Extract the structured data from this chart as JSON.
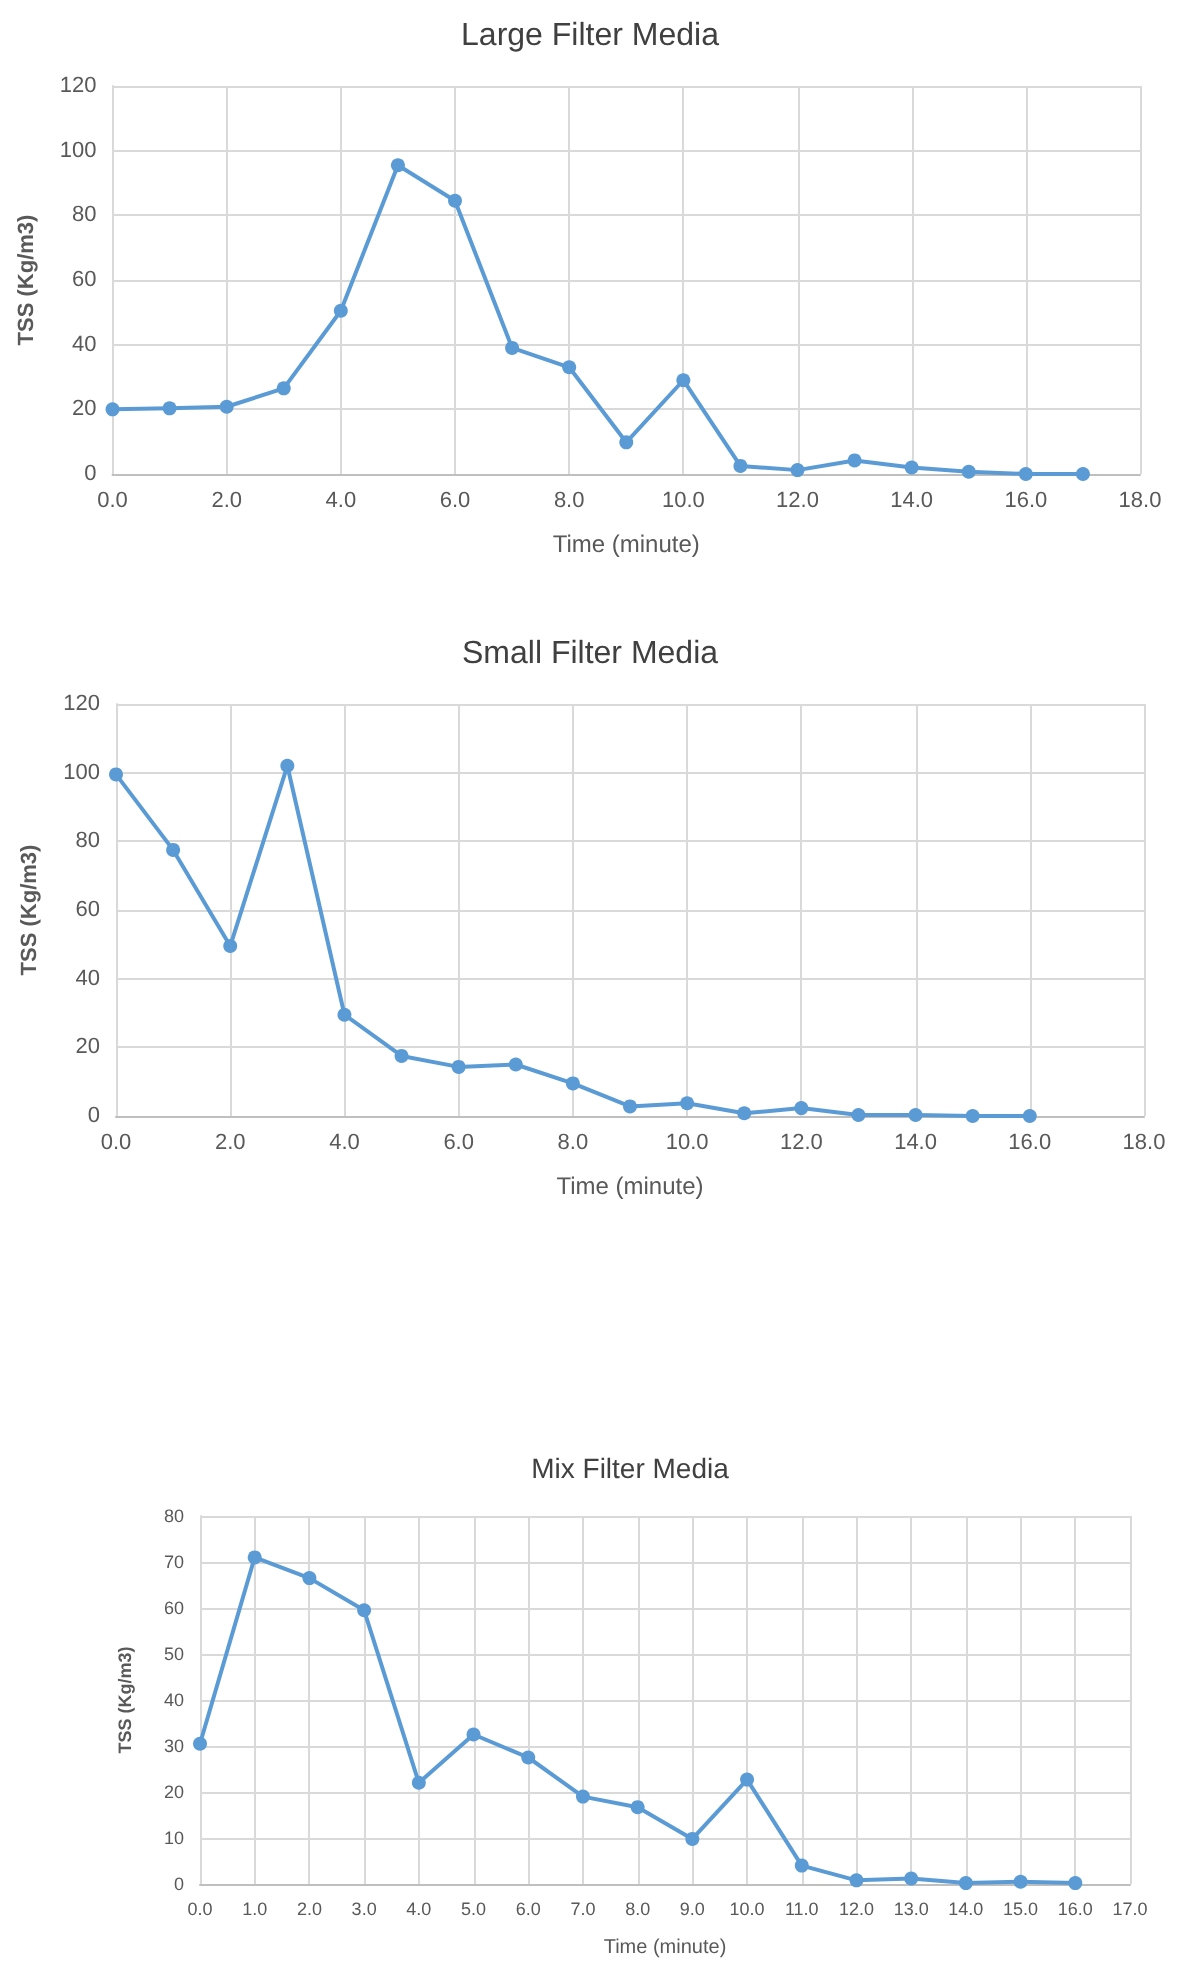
{
  "chart_data": [
    {
      "type": "line",
      "title": "Large Filter Media",
      "xlabel": "Time (minute)",
      "ylabel": "TSS (Kg/m3)",
      "x": [
        0,
        1,
        2,
        3,
        4,
        5,
        6,
        7,
        8,
        9,
        10,
        11,
        12,
        13,
        14,
        15,
        16,
        17
      ],
      "series": [
        {
          "color": "#5b9bd5",
          "values": [
            20,
            20.3,
            20.8,
            26.5,
            50.5,
            95.5,
            84.5,
            39,
            33,
            9.8,
            29,
            2.5,
            1.2,
            4.2,
            2,
            0.7,
            0,
            0
          ]
        }
      ],
      "xlim": [
        0,
        18
      ],
      "xticks": [
        {
          "value": 0,
          "label": "0.0"
        },
        {
          "value": 2,
          "label": "2.0"
        },
        {
          "value": 4,
          "label": "4.0"
        },
        {
          "value": 6,
          "label": "6.0"
        },
        {
          "value": 8,
          "label": "8.0"
        },
        {
          "value": 10,
          "label": "10.0"
        },
        {
          "value": 12,
          "label": "12.0"
        },
        {
          "value": 14,
          "label": "14.0"
        },
        {
          "value": 16,
          "label": "16.0"
        },
        {
          "value": 18,
          "label": "18.0"
        }
      ],
      "ylim": [
        0,
        120
      ],
      "yticks": [
        0,
        20,
        40,
        60,
        80,
        100,
        120
      ],
      "grid": true,
      "marker": "circle",
      "line_style": "solid"
    },
    {
      "type": "line",
      "title": "Small Filter Media",
      "xlabel": "Time (minute)",
      "ylabel": "TSS (Kg/m3)",
      "x": [
        0,
        1,
        2,
        3,
        4,
        5,
        6,
        7,
        8,
        9,
        10,
        11,
        12,
        13,
        14,
        15,
        16
      ],
      "series": [
        {
          "color": "#5b9bd5",
          "values": [
            99.5,
            77.5,
            49.5,
            102,
            29.5,
            17.5,
            14.3,
            15,
            9.5,
            2.8,
            3.7,
            0.8,
            2.3,
            0.3,
            0.3,
            0,
            0
          ]
        }
      ],
      "xlim": [
        0,
        18
      ],
      "xticks": [
        {
          "value": 0,
          "label": "0.0"
        },
        {
          "value": 2,
          "label": "2.0"
        },
        {
          "value": 4,
          "label": "4.0"
        },
        {
          "value": 6,
          "label": "6.0"
        },
        {
          "value": 8,
          "label": "8.0"
        },
        {
          "value": 10,
          "label": "10.0"
        },
        {
          "value": 12,
          "label": "12.0"
        },
        {
          "value": 14,
          "label": "14.0"
        },
        {
          "value": 16,
          "label": "16.0"
        },
        {
          "value": 18,
          "label": "18.0"
        }
      ],
      "ylim": [
        0,
        120
      ],
      "yticks": [
        0,
        20,
        40,
        60,
        80,
        100,
        120
      ],
      "grid": true,
      "marker": "circle",
      "line_style": "solid"
    },
    {
      "type": "line",
      "title": "Mix Filter Media",
      "xlabel": "Time (minute)",
      "ylabel": "TSS (Kg/m3)",
      "x": [
        0,
        1,
        2,
        3,
        4,
        5,
        6,
        7,
        8,
        9,
        10,
        11,
        12,
        13,
        14,
        15,
        16
      ],
      "series": [
        {
          "color": "#5b9bd5",
          "values": [
            30.5,
            71,
            66.5,
            59.5,
            22,
            32.5,
            27.5,
            19,
            16.7,
            9.8,
            22.7,
            4,
            0.8,
            1.2,
            0.2,
            0.5,
            0.2
          ]
        }
      ],
      "xlim": [
        0,
        17
      ],
      "xticks": [
        {
          "value": 0,
          "label": "0.0"
        },
        {
          "value": 1,
          "label": "1.0"
        },
        {
          "value": 2,
          "label": "2.0"
        },
        {
          "value": 3,
          "label": "3.0"
        },
        {
          "value": 4,
          "label": "4.0"
        },
        {
          "value": 5,
          "label": "5.0"
        },
        {
          "value": 6,
          "label": "6.0"
        },
        {
          "value": 7,
          "label": "7.0"
        },
        {
          "value": 8,
          "label": "8.0"
        },
        {
          "value": 9,
          "label": "9.0"
        },
        {
          "value": 10,
          "label": "10.0"
        },
        {
          "value": 11,
          "label": "11.0"
        },
        {
          "value": 12,
          "label": "12.0"
        },
        {
          "value": 13,
          "label": "13.0"
        },
        {
          "value": 14,
          "label": "14.0"
        },
        {
          "value": 15,
          "label": "15.0"
        },
        {
          "value": 16,
          "label": "16.0"
        },
        {
          "value": 17,
          "label": "17.0"
        }
      ],
      "ylim": [
        0,
        80
      ],
      "yticks": [
        0,
        10,
        20,
        30,
        40,
        50,
        60,
        70,
        80
      ],
      "grid": true,
      "marker": "circle",
      "line_style": "solid"
    }
  ]
}
